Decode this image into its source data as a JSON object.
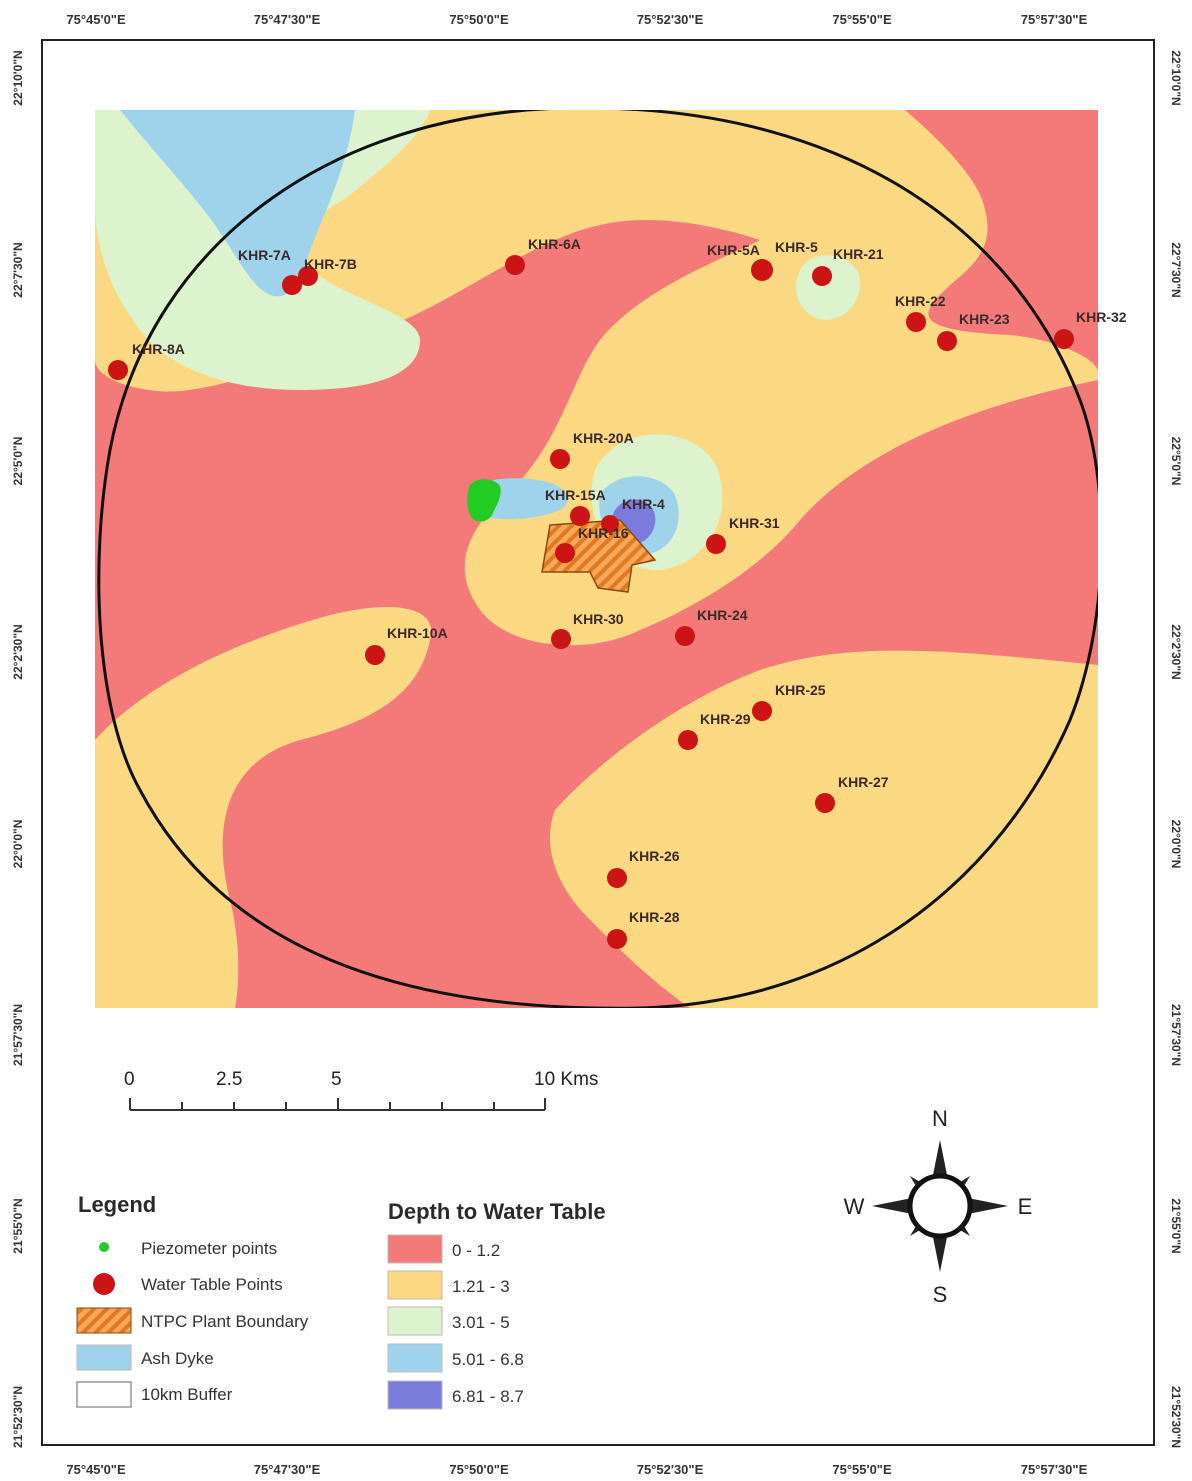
{
  "colors": {
    "class_0_1_2": "#f47a7a",
    "class_1_21_3": "#fbd982",
    "class_3_01_5": "#dcf3cd",
    "class_5_01_6_8": "#9fd3ec",
    "class_6_81_8_7": "#7b7bdc",
    "water_table_point": "#cc1414",
    "piezometer_point": "#22cc22",
    "plant_boundary": "#e8852b"
  },
  "axes": {
    "top_labels": [
      "75°45'0\"E",
      "75°47'30\"E",
      "75°50'0\"E",
      "75°52'30\"E",
      "75°55'0\"E",
      "75°57'30\"E"
    ],
    "bottom_labels": [
      "75°45'0\"E",
      "75°47'30\"E",
      "75°50'0\"E",
      "75°52'30\"E",
      "75°55'0\"E",
      "75°57'30\"E"
    ],
    "left_labels": [
      "22°10'0\"N",
      "22°7'30\"N",
      "22°5'0\"N",
      "22°2'30\"N",
      "22°0'0\"N",
      "21°57'30\"N",
      "21°55'0\"N",
      "21°52'30\"N"
    ],
    "right_labels": [
      "22°10'0\"N",
      "22°7'30\"N",
      "22°5'0\"N",
      "22°2'30\"N",
      "22°0'0\"N",
      "21°57'30\"N",
      "21°55'0\"N",
      "21°52'30\"N"
    ]
  },
  "points": {
    "khr_7a": "KHR-7A",
    "khr_7b": "KHR-7B",
    "khr_6a": "KHR-6A",
    "khr_5a": "KHR-5A",
    "khr_5": "KHR-5",
    "khr_21_top": "KHR-21",
    "khr_22": "KHR-22",
    "khr_23": "KHR-23",
    "khr_32": "KHR-32",
    "khr_8a": "KHR-8A",
    "khr_20a": "KHR-20A",
    "khr_15a": "KHR-15A",
    "khr_4": "KHR-4",
    "khr_16": "KHR-16",
    "khr_31": "KHR-31",
    "khr_10a": "KHR-10A",
    "khr_30": "KHR-30",
    "khr_24": "KHR-24",
    "khr_25": "KHR-25",
    "khr_29": "KHR-29",
    "khr_27": "KHR-27",
    "khr_26": "KHR-26",
    "khr_28": "KHR-28"
  },
  "scale_bar": {
    "labels": [
      "0",
      "2.5",
      "5",
      "10 Kms"
    ]
  },
  "legend": {
    "title": "Legend",
    "items": [
      "Piezometer points",
      "Water Table Points",
      "NTPC Plant Boundary",
      "Ash Dyke",
      "10km Buffer"
    ]
  },
  "depth_legend": {
    "title": "Depth to Water Table",
    "classes": [
      "0 - 1.2",
      "1.21 - 3",
      "3.01 - 5",
      "5.01 - 6.8",
      "6.81 - 8.7"
    ]
  },
  "compass": {
    "n": "N",
    "s": "S",
    "e": "E",
    "w": "W"
  }
}
